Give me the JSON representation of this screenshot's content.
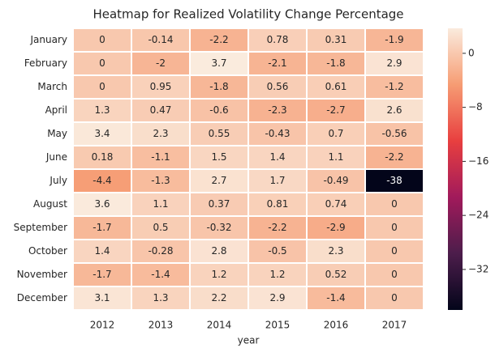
{
  "chart_data": {
    "type": "heatmap",
    "title": "Heatmap for Realized Volatility Change Percentage",
    "xlabel": "year",
    "columns": [
      "2012",
      "2013",
      "2014",
      "2015",
      "2016",
      "2017"
    ],
    "rows": [
      "January",
      "February",
      "March",
      "April",
      "May",
      "June",
      "July",
      "August",
      "September",
      "October",
      "November",
      "December"
    ],
    "values": [
      [
        0,
        -0.14,
        -2.2,
        0.78,
        0.31,
        -1.9
      ],
      [
        0,
        -2,
        3.7,
        -2.1,
        -1.8,
        2.9
      ],
      [
        0,
        0.95,
        -1.8,
        0.56,
        0.61,
        -1.2
      ],
      [
        1.3,
        0.47,
        -0.6,
        -2.3,
        -2.7,
        2.6
      ],
      [
        3.4,
        2.3,
        0.55,
        -0.43,
        0.7,
        -0.56
      ],
      [
        0.18,
        -1.1,
        1.5,
        1.4,
        1.1,
        -2.2
      ],
      [
        -4.4,
        -1.3,
        2.7,
        1.7,
        -0.49,
        -38
      ],
      [
        3.6,
        1.1,
        0.37,
        0.81,
        0.74,
        0
      ],
      [
        -1.7,
        0.5,
        -0.32,
        -2.2,
        -2.9,
        0
      ],
      [
        1.4,
        -0.28,
        2.8,
        -0.5,
        2.3,
        0
      ],
      [
        -1.7,
        -1.4,
        1.2,
        1.2,
        0.52,
        0
      ],
      [
        3.1,
        1.3,
        2.2,
        2.9,
        -1.4,
        0
      ]
    ],
    "zlim": [
      -38,
      3.7
    ],
    "zticks": [
      0,
      {
        "value": -8,
        "label": "−8"
      },
      {
        "value": -16,
        "label": "−16"
      },
      {
        "value": -24,
        "label": "−24"
      },
      {
        "value": -32,
        "label": "−32"
      }
    ],
    "colormap": [
      "#03051a",
      "#4c1d4b",
      "#a11a5b",
      "#e83f3f",
      "#f69c73",
      "#faebdd"
    ]
  }
}
